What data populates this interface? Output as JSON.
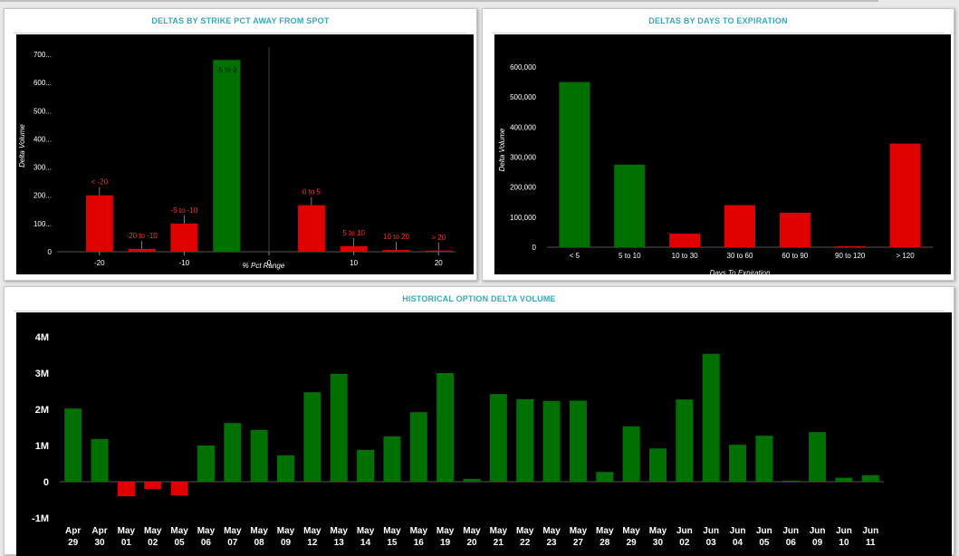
{
  "panels": {
    "strike": {
      "title": "DELTAS BY STRIKE PCT AWAY FROM SPOT"
    },
    "expiry": {
      "title": "DELTAS BY DAYS TO EXPIRATION"
    },
    "history": {
      "title": "HISTORICAL OPTION DELTA VOLUME"
    }
  },
  "colors": {
    "positive": "#007000",
    "negative": "#e00000",
    "plot_bg": "#000000",
    "title": "#3aa8b8"
  },
  "chart_data": [
    {
      "id": "strike",
      "type": "bar",
      "xlabel": "% Pct Range",
      "ylabel": "Delta Volume",
      "xlim": [
        -25,
        22
      ],
      "ylim": [
        0,
        700
      ],
      "yticks": [
        0,
        100,
        200,
        300,
        400,
        500,
        600,
        700
      ],
      "ytick_labels": [
        "0",
        "100...",
        "200...",
        "300...",
        "400...",
        "500...",
        "600...",
        "700..."
      ],
      "xticks": [
        -20,
        -10,
        0,
        10,
        20
      ],
      "xtick_labels": [
        "-20",
        "-10",
        "0",
        "10",
        "20"
      ],
      "bars": [
        {
          "label": "< -20",
          "x": -20,
          "value": 200,
          "color": "#e00000"
        },
        {
          "label": "-20 to -10",
          "x": -15,
          "value": 10,
          "color": "#e00000"
        },
        {
          "label": "-5 to -10",
          "x": -10,
          "value": 100,
          "color": "#e00000"
        },
        {
          "label": "-5 to 0",
          "x": -5,
          "value": 680,
          "color": "#007000"
        },
        {
          "label": "0 to 5",
          "x": 5,
          "value": 165,
          "color": "#e00000"
        },
        {
          "label": "5 to 10",
          "x": 10,
          "value": 20,
          "color": "#e00000"
        },
        {
          "label": "10 to 20",
          "x": 15,
          "value": 6,
          "color": "#e00000"
        },
        {
          "label": "> 20",
          "x": 20,
          "value": 4,
          "color": "#e00000"
        }
      ]
    },
    {
      "id": "expiry",
      "type": "bar",
      "xlabel": "Days To Expiration",
      "ylabel": "Delta Volume",
      "ylim": [
        0,
        600000
      ],
      "yticks": [
        0,
        100000,
        200000,
        300000,
        400000,
        500000,
        600000
      ],
      "ytick_labels": [
        "0",
        "100,000",
        "200,000",
        "300,000",
        "400,000",
        "500,000",
        "600,000"
      ],
      "categories": [
        "< 5",
        "5 to 10",
        "10 to 30",
        "30 to 60",
        "60 to 90",
        "90 to 120",
        "> 120"
      ],
      "values": [
        550000,
        275000,
        45000,
        140000,
        115000,
        3000,
        345000
      ],
      "colors": [
        "#007000",
        "#007000",
        "#e00000",
        "#e00000",
        "#e00000",
        "#e00000",
        "#e00000"
      ]
    },
    {
      "id": "history",
      "type": "bar",
      "xlabel": "",
      "ylabel": "",
      "ylim": [
        -1000000,
        4000000
      ],
      "yticks": [
        -1000000,
        0,
        1000000,
        2000000,
        3000000,
        4000000
      ],
      "ytick_labels": [
        "-1M",
        "0",
        "1M",
        "2M",
        "3M",
        "4M"
      ],
      "categories": [
        [
          "Apr",
          "29"
        ],
        [
          "Apr",
          "30"
        ],
        [
          "May",
          "01"
        ],
        [
          "May",
          "02"
        ],
        [
          "May",
          "05"
        ],
        [
          "May",
          "06"
        ],
        [
          "May",
          "07"
        ],
        [
          "May",
          "08"
        ],
        [
          "May",
          "09"
        ],
        [
          "May",
          "12"
        ],
        [
          "May",
          "13"
        ],
        [
          "May",
          "14"
        ],
        [
          "May",
          "15"
        ],
        [
          "May",
          "16"
        ],
        [
          "May",
          "19"
        ],
        [
          "May",
          "20"
        ],
        [
          "May",
          "21"
        ],
        [
          "May",
          "22"
        ],
        [
          "May",
          "23"
        ],
        [
          "May",
          "27"
        ],
        [
          "May",
          "28"
        ],
        [
          "May",
          "29"
        ],
        [
          "May",
          "30"
        ],
        [
          "Jun",
          "02"
        ],
        [
          "Jun",
          "03"
        ],
        [
          "Jun",
          "04"
        ],
        [
          "Jun",
          "05"
        ],
        [
          "Jun",
          "06"
        ],
        [
          "Jun",
          "09"
        ],
        [
          "Jun",
          "10"
        ],
        [
          "Jun",
          "11"
        ]
      ],
      "values": [
        2020000,
        1180000,
        -400000,
        -200000,
        -380000,
        1000000,
        1620000,
        1430000,
        730000,
        2470000,
        2980000,
        880000,
        1250000,
        1920000,
        3000000,
        80000,
        2420000,
        2280000,
        2230000,
        2240000,
        270000,
        1530000,
        920000,
        2270000,
        3530000,
        1020000,
        1270000,
        30000,
        1370000,
        110000,
        180000
      ]
    }
  ]
}
